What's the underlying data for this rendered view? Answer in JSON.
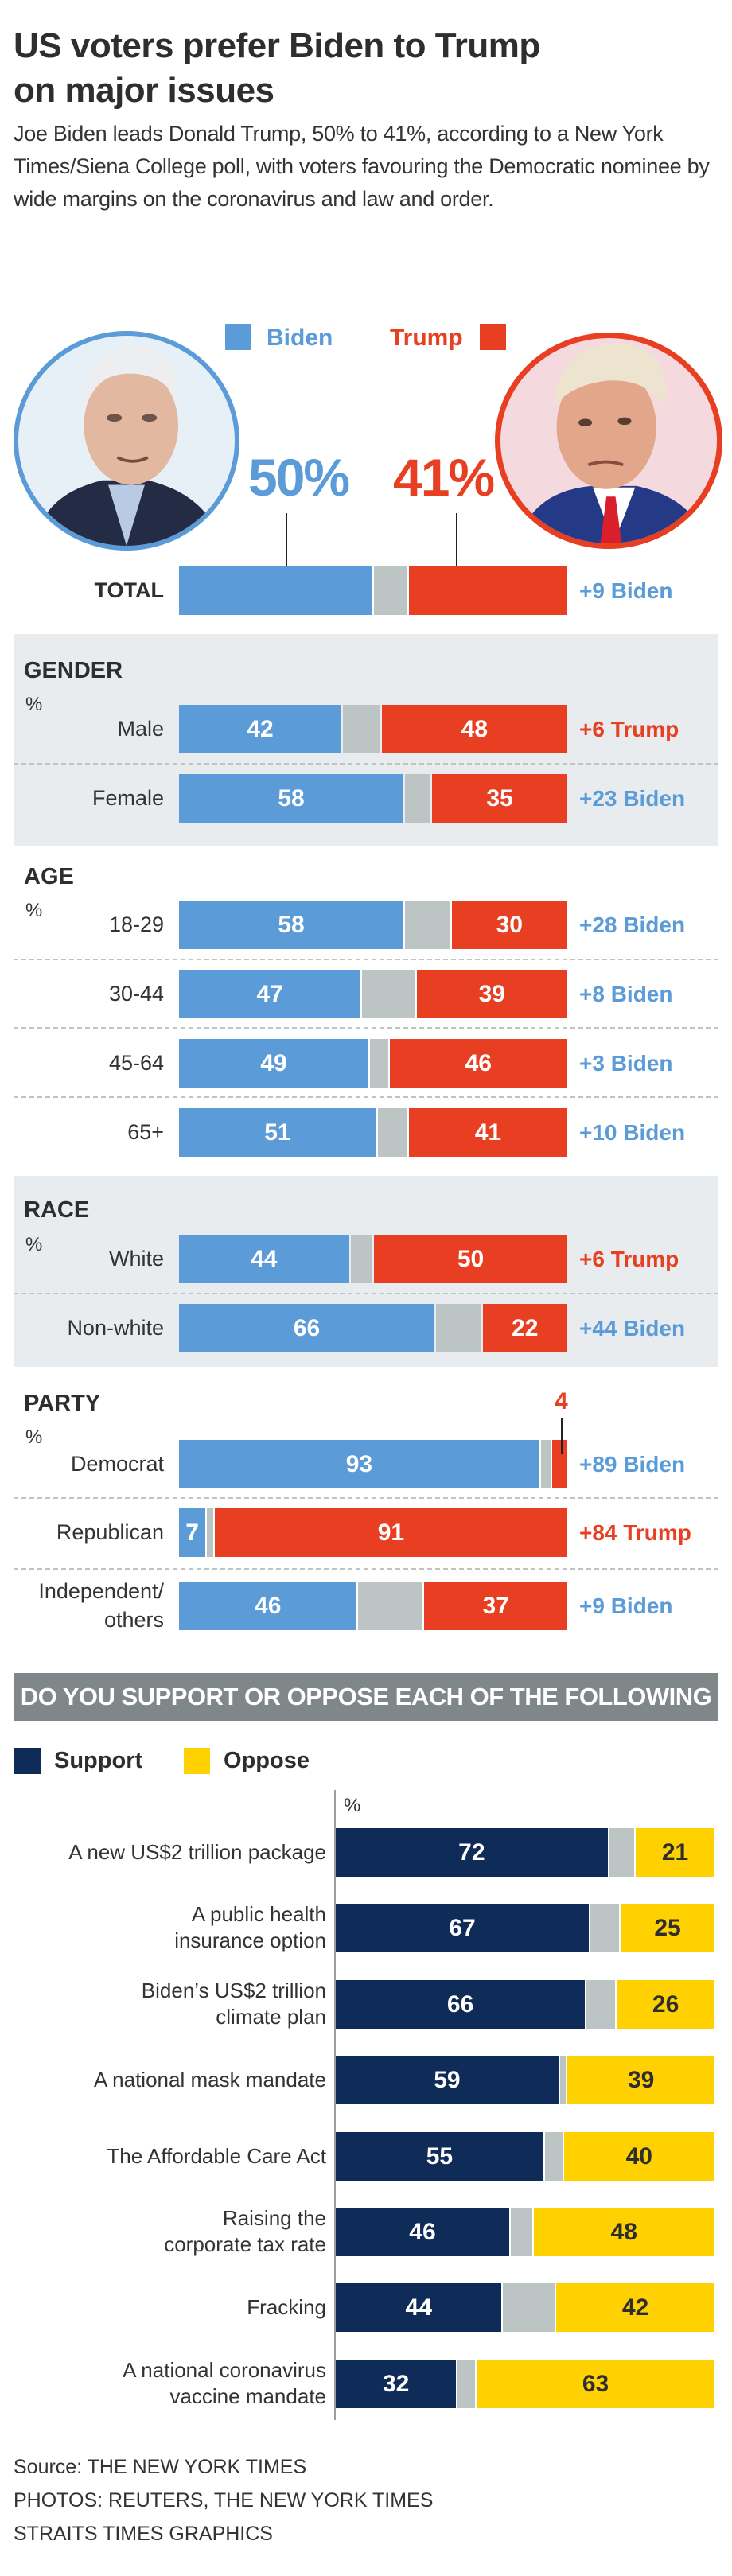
{
  "header": {
    "title_line1": "US voters prefer Biden to Trump",
    "title_line2": "on major issues",
    "intro": "Joe Biden leads Donald Trump, 50% to 41%, according to a New York Times/Siena College poll, with voters favouring the Democratic nominee by wide margins on the coronavirus and law and order."
  },
  "colors": {
    "biden": "#5b9bd8",
    "trump": "#e83f23",
    "undecided": "#bcc4c4",
    "support": "#0f2b57",
    "oppose": "#ffd100",
    "panel_bg": "#e8ecee",
    "banner_bg": "#7f8789"
  },
  "legend": {
    "biden_label": "Biden",
    "trump_label": "Trump"
  },
  "portraits": {
    "biden_icon": "biden-portrait",
    "trump_icon": "trump-portrait"
  },
  "total": {
    "label": "TOTAL",
    "biden_pct_text": "50%",
    "trump_pct_text": "41%",
    "biden": 50,
    "trump": 41,
    "lead": "+9 Biden",
    "lead_side": "biden"
  },
  "chart_data": [
    {
      "type": "bar",
      "subtype": "stacked-horizontal-100",
      "title": "US voters prefer Biden to Trump on major issues",
      "unit": "%",
      "series": [
        {
          "name": "Biden",
          "color": "#5b9bd8"
        },
        {
          "name": "Other/undecided",
          "color": "#bcc4c4"
        },
        {
          "name": "Trump",
          "color": "#e83f23"
        }
      ],
      "groups": [
        {
          "name": "TOTAL",
          "rows": [
            {
              "label": "TOTAL",
              "biden": 50,
              "trump": 41,
              "lead": "+9 Biden",
              "lead_side": "biden"
            }
          ]
        },
        {
          "name": "GENDER",
          "unit_label": "%",
          "shaded": true,
          "rows": [
            {
              "label": "Male",
              "biden": 42,
              "trump": 48,
              "lead": "+6 Trump",
              "lead_side": "trump"
            },
            {
              "label": "Female",
              "biden": 58,
              "trump": 35,
              "lead": "+23 Biden",
              "lead_side": "biden"
            }
          ]
        },
        {
          "name": "AGE",
          "unit_label": "%",
          "shaded": false,
          "rows": [
            {
              "label": "18-29",
              "biden": 58,
              "trump": 30,
              "lead": "+28 Biden",
              "lead_side": "biden"
            },
            {
              "label": "30-44",
              "biden": 47,
              "trump": 39,
              "lead": "+8 Biden",
              "lead_side": "biden"
            },
            {
              "label": "45-64",
              "biden": 49,
              "trump": 46,
              "lead": "+3 Biden",
              "lead_side": "biden"
            },
            {
              "label": "65+",
              "biden": 51,
              "trump": 41,
              "lead": "+10 Biden",
              "lead_side": "biden"
            }
          ]
        },
        {
          "name": "RACE",
          "unit_label": "%",
          "shaded": true,
          "rows": [
            {
              "label": "White",
              "biden": 44,
              "trump": 50,
              "lead": "+6 Trump",
              "lead_side": "trump"
            },
            {
              "label": "Non-white",
              "biden": 66,
              "trump": 22,
              "lead": "+44 Biden",
              "lead_side": "biden"
            }
          ]
        },
        {
          "name": "PARTY",
          "unit_label": "%",
          "shaded": false,
          "rows": [
            {
              "label": "Democrat",
              "biden": 93,
              "trump": 4,
              "lead": "+89 Biden",
              "lead_side": "biden",
              "trump_callout": "4"
            },
            {
              "label": "Republican",
              "biden": 7,
              "trump": 91,
              "lead": "+84 Trump",
              "lead_side": "trump"
            },
            {
              "label": "Independent/\nothers",
              "label_line1": "Independent/",
              "label_line2": "others",
              "biden": 46,
              "trump": 37,
              "lead": "+9 Biden",
              "lead_side": "biden"
            }
          ]
        }
      ],
      "xlim": [
        0,
        100
      ]
    },
    {
      "type": "bar",
      "subtype": "stacked-horizontal-100",
      "title": "DO YOU SUPPORT OR OPPOSE EACH OF THE FOLLOWING",
      "unit": "%",
      "legend": [
        "Support",
        "Oppose"
      ],
      "series": [
        {
          "name": "Support",
          "color": "#0f2b57"
        },
        {
          "name": "Other/undecided",
          "color": "#bcc4c4"
        },
        {
          "name": "Oppose",
          "color": "#ffd100"
        }
      ],
      "categories": [
        "A new US$2 trillion package",
        "A public health insurance option",
        "Biden's US$2 trillion climate plan",
        "A national mask mandate",
        "The Affordable Care Act",
        "Raising the corporate tax rate",
        "Fracking",
        "A national coronavirus vaccine mandate"
      ],
      "rows": [
        {
          "line1": "A new US$2 trillion package",
          "line2": "",
          "support": 72,
          "oppose": 21
        },
        {
          "line1": "A public health",
          "line2": "insurance option",
          "support": 67,
          "oppose": 25
        },
        {
          "line1": "Biden’s US$2 trillion",
          "line2": "climate plan",
          "support": 66,
          "oppose": 26
        },
        {
          "line1": "A national mask mandate",
          "line2": "",
          "support": 59,
          "oppose": 39
        },
        {
          "line1": "The Affordable Care Act",
          "line2": "",
          "support": 55,
          "oppose": 40
        },
        {
          "line1": "Raising the",
          "line2": "corporate tax rate",
          "support": 46,
          "oppose": 48
        },
        {
          "line1": "Fracking",
          "line2": "",
          "support": 44,
          "oppose": 42
        },
        {
          "line1": "A national coronavirus",
          "line2": "vaccine mandate",
          "support": 32,
          "oppose": 63
        }
      ],
      "xlim": [
        0,
        100
      ]
    }
  ],
  "issues": {
    "banner": "DO YOU SUPPORT OR OPPOSE EACH OF THE FOLLOWING",
    "legend_support": "Support",
    "legend_oppose": "Oppose",
    "unit_label": "%"
  },
  "footer": {
    "source": "Source: THE NEW YORK TIMES",
    "photos": "PHOTOS: REUTERS, THE NEW YORK TIMES",
    "credit": "STRAITS TIMES GRAPHICS"
  }
}
